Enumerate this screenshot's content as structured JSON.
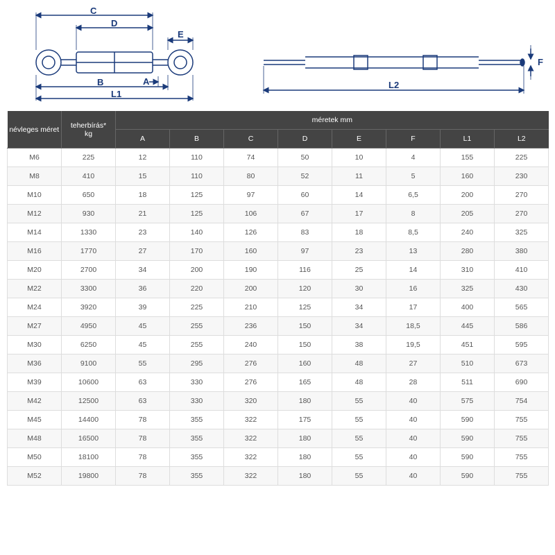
{
  "diagram": {
    "stroke": "#1a3a7a",
    "fill": "#ffffff",
    "labels": [
      "A",
      "B",
      "C",
      "D",
      "E",
      "F",
      "L1",
      "L2"
    ]
  },
  "table": {
    "header_bg": "#444444",
    "header_fg": "#ffffff",
    "border": "#dddddd",
    "row_alt": "#f7f7f7",
    "col1": "névleges méret",
    "col2_line1": "teherbírás*",
    "col2_line2": "kg",
    "dims_header": "méretek   mm",
    "dim_cols": [
      "A",
      "B",
      "C",
      "D",
      "E",
      "F",
      "L1",
      "L2"
    ],
    "rows": [
      {
        "size": "M6",
        "load": "225",
        "A": "12",
        "B": "110",
        "C": "74",
        "D": "50",
        "E": "10",
        "F": "4",
        "L1": "155",
        "L2": "225"
      },
      {
        "size": "M8",
        "load": "410",
        "A": "15",
        "B": "110",
        "C": "80",
        "D": "52",
        "E": "11",
        "F": "5",
        "L1": "160",
        "L2": "230"
      },
      {
        "size": "M10",
        "load": "650",
        "A": "18",
        "B": "125",
        "C": "97",
        "D": "60",
        "E": "14",
        "F": "6,5",
        "L1": "200",
        "L2": "270"
      },
      {
        "size": "M12",
        "load": "930",
        "A": "21",
        "B": "125",
        "C": "106",
        "D": "67",
        "E": "17",
        "F": "8",
        "L1": "205",
        "L2": "270"
      },
      {
        "size": "M14",
        "load": "1330",
        "A": "23",
        "B": "140",
        "C": "126",
        "D": "83",
        "E": "18",
        "F": "8,5",
        "L1": "240",
        "L2": "325"
      },
      {
        "size": "M16",
        "load": "1770",
        "A": "27",
        "B": "170",
        "C": "160",
        "D": "97",
        "E": "23",
        "F": "13",
        "L1": "280",
        "L2": "380"
      },
      {
        "size": "M20",
        "load": "2700",
        "A": "34",
        "B": "200",
        "C": "190",
        "D": "116",
        "E": "25",
        "F": "14",
        "L1": "310",
        "L2": "410"
      },
      {
        "size": "M22",
        "load": "3300",
        "A": "36",
        "B": "220",
        "C": "200",
        "D": "120",
        "E": "30",
        "F": "16",
        "L1": "325",
        "L2": "430"
      },
      {
        "size": "M24",
        "load": "3920",
        "A": "39",
        "B": "225",
        "C": "210",
        "D": "125",
        "E": "34",
        "F": "17",
        "L1": "400",
        "L2": "565"
      },
      {
        "size": "M27",
        "load": "4950",
        "A": "45",
        "B": "255",
        "C": "236",
        "D": "150",
        "E": "34",
        "F": "18,5",
        "L1": "445",
        "L2": "586"
      },
      {
        "size": "M30",
        "load": "6250",
        "A": "45",
        "B": "255",
        "C": "240",
        "D": "150",
        "E": "38",
        "F": "19,5",
        "L1": "451",
        "L2": "595"
      },
      {
        "size": "M36",
        "load": "9100",
        "A": "55",
        "B": "295",
        "C": "276",
        "D": "160",
        "E": "48",
        "F": "27",
        "L1": "510",
        "L2": "673"
      },
      {
        "size": "M39",
        "load": "10600",
        "A": "63",
        "B": "330",
        "C": "276",
        "D": "165",
        "E": "48",
        "F": "28",
        "L1": "511",
        "L2": "690"
      },
      {
        "size": "M42",
        "load": "12500",
        "A": "63",
        "B": "330",
        "C": "320",
        "D": "180",
        "E": "55",
        "F": "40",
        "L1": "575",
        "L2": "754"
      },
      {
        "size": "M45",
        "load": "14400",
        "A": "78",
        "B": "355",
        "C": "322",
        "D": "175",
        "E": "55",
        "F": "40",
        "L1": "590",
        "L2": "755"
      },
      {
        "size": "M48",
        "load": "16500",
        "A": "78",
        "B": "355",
        "C": "322",
        "D": "180",
        "E": "55",
        "F": "40",
        "L1": "590",
        "L2": "755"
      },
      {
        "size": "M50",
        "load": "18100",
        "A": "78",
        "B": "355",
        "C": "322",
        "D": "180",
        "E": "55",
        "F": "40",
        "L1": "590",
        "L2": "755"
      },
      {
        "size": "M52",
        "load": "19800",
        "A": "78",
        "B": "355",
        "C": "322",
        "D": "180",
        "E": "55",
        "F": "40",
        "L1": "590",
        "L2": "755"
      }
    ]
  }
}
